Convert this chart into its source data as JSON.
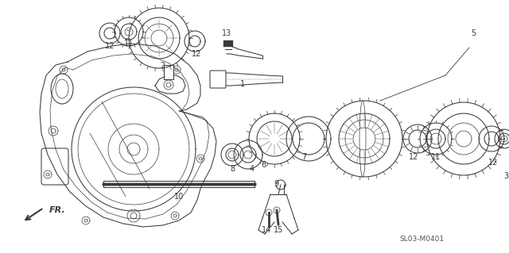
{
  "bg_color": "#ffffff",
  "line_color": "#3a3a3a",
  "diagram_code": "SL03-M0401",
  "fr_label": "FR.",
  "figsize": [
    6.4,
    3.19
  ],
  "dpi": 100
}
